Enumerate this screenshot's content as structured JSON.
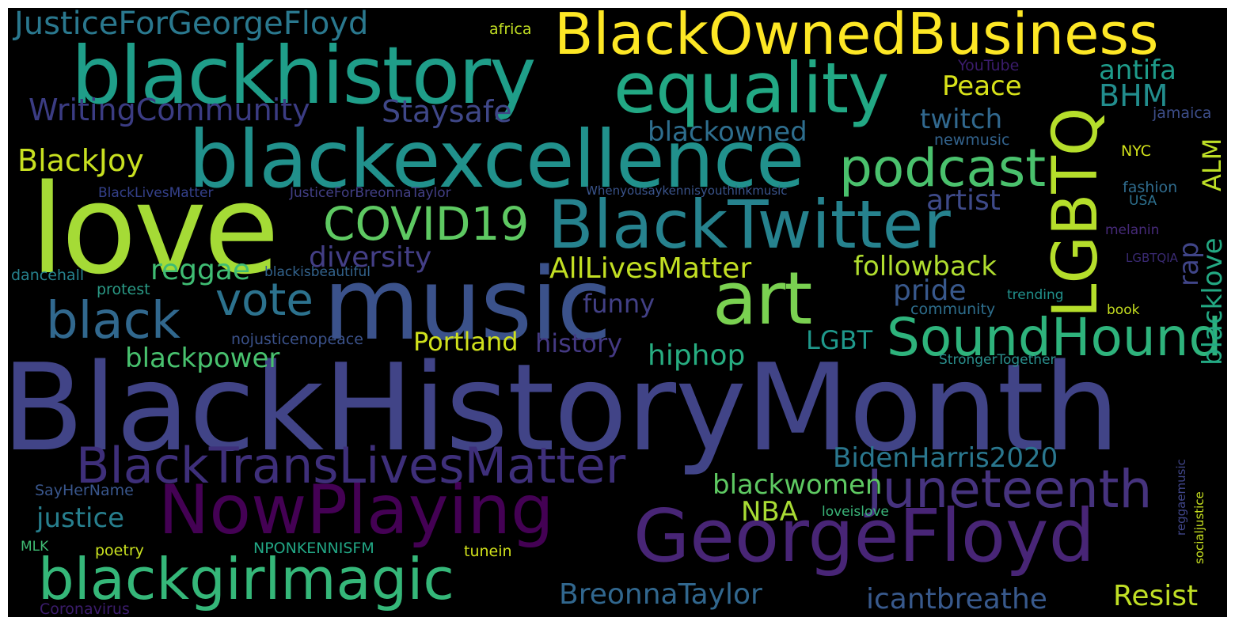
{
  "words": [
    {
      "text": "BlackHistoryMonth",
      "color": "#414487"
    },
    {
      "text": "love",
      "color": "#a5db36"
    },
    {
      "text": "music",
      "color": "#3b528b"
    },
    {
      "text": "blackexcellence",
      "color": "#21918c"
    },
    {
      "text": "blackhistory",
      "color": "#1f9e89"
    },
    {
      "text": "equality",
      "color": "#22a884"
    },
    {
      "text": "BlackOwnedBusiness",
      "color": "#fde725"
    },
    {
      "text": "BlackTwitter",
      "color": "#26828e"
    },
    {
      "text": "art",
      "color": "#7ad151"
    },
    {
      "text": "GeorgeFloyd",
      "color": "#482576"
    },
    {
      "text": "NowPlaying",
      "color": "#440154"
    },
    {
      "text": "LGBTQ",
      "color": "#b5de2b"
    },
    {
      "text": "blackgirlmagic",
      "color": "#35b779"
    },
    {
      "text": "BlackTransLivesMatter",
      "color": "#3e2f7a"
    },
    {
      "text": "podcast",
      "color": "#4ac16d"
    },
    {
      "text": "Juneteenth",
      "color": "#46337e"
    },
    {
      "text": "SoundHound",
      "color": "#2eb37c"
    },
    {
      "text": "black",
      "color": "#31688e"
    },
    {
      "text": "vote",
      "color": "#2c728e"
    },
    {
      "text": "COVID19",
      "color": "#5ec962"
    },
    {
      "text": "JusticeForGeorgeFloyd",
      "color": "#2a788e"
    },
    {
      "text": "WritingCommunity",
      "color": "#3b3c83"
    },
    {
      "text": "Staysafe",
      "color": "#3f4788"
    },
    {
      "text": "BlackJoy",
      "color": "#c8e020"
    },
    {
      "text": "blackowned",
      "color": "#2e6e8e"
    },
    {
      "text": "twitch",
      "color": "#31688e"
    },
    {
      "text": "BHM",
      "color": "#228d8d"
    },
    {
      "text": "Peace",
      "color": "#d8e219"
    },
    {
      "text": "antifa",
      "color": "#1e9b8a"
    },
    {
      "text": "ALM",
      "color": "#bddf26"
    },
    {
      "text": "artist",
      "color": "#3e4a89"
    },
    {
      "text": "diversity",
      "color": "#433e85"
    },
    {
      "text": "reggae",
      "color": "#3fbc73"
    },
    {
      "text": "AllLivesMatter",
      "color": "#c2df23"
    },
    {
      "text": "followback",
      "color": "#b0dd2f"
    },
    {
      "text": "rap",
      "color": "#404588"
    },
    {
      "text": "blacklove",
      "color": "#23a983"
    },
    {
      "text": "pride",
      "color": "#38588c"
    },
    {
      "text": "funny",
      "color": "#424086"
    },
    {
      "text": "history",
      "color": "#443983"
    },
    {
      "text": "Portland",
      "color": "#d0e11c"
    },
    {
      "text": "LGBT",
      "color": "#1f988b"
    },
    {
      "text": "hiphop",
      "color": "#27ad81"
    },
    {
      "text": "blackpower",
      "color": "#48c16e"
    },
    {
      "text": "BidenHarris2020",
      "color": "#2a778e"
    },
    {
      "text": "blackwomen",
      "color": "#5ec962"
    },
    {
      "text": "NBA",
      "color": "#a8db34"
    },
    {
      "text": "justice",
      "color": "#277f8e"
    },
    {
      "text": "BreonnaTaylor",
      "color": "#31678e"
    },
    {
      "text": "icantbreathe",
      "color": "#38598c"
    },
    {
      "text": "Resist",
      "color": "#c0df25"
    },
    {
      "text": "africa",
      "color": "#c2df23"
    },
    {
      "text": "YouTube",
      "color": "#3b1c6c"
    },
    {
      "text": "jamaica",
      "color": "#3d4e8a"
    },
    {
      "text": "newmusic",
      "color": "#33638d"
    },
    {
      "text": "NYC",
      "color": "#d2e21b"
    },
    {
      "text": "BlackLivesMatter",
      "color": "#34408a"
    },
    {
      "text": "JusticeForBreonnaTaylor",
      "color": "#423f85"
    },
    {
      "text": "Whenyousaykennisyouthinkmusic",
      "color": "#3a548c"
    },
    {
      "text": "fashion",
      "color": "#2f6c8e"
    },
    {
      "text": "USA",
      "color": "#2d708e"
    },
    {
      "text": "melanin",
      "color": "#462a79"
    },
    {
      "text": "LGBTQIA",
      "color": "#3a2a73"
    },
    {
      "text": "dancehall",
      "color": "#26828e"
    },
    {
      "text": "blackisbeautiful",
      "color": "#33638d"
    },
    {
      "text": "protest",
      "color": "#2a9a86"
    },
    {
      "text": "trending",
      "color": "#21918c"
    },
    {
      "text": "community",
      "color": "#2e6f8e"
    },
    {
      "text": "book",
      "color": "#c6df1f"
    },
    {
      "text": "nojusticenopeace",
      "color": "#3b528b"
    },
    {
      "text": "StrongerTogether",
      "color": "#2a8f8d"
    },
    {
      "text": "SayHerName",
      "color": "#39568c"
    },
    {
      "text": "loveislove",
      "color": "#3ab579"
    },
    {
      "text": "reggaemusic",
      "color": "#404588"
    },
    {
      "text": "socialjustice",
      "color": "#c7e020"
    },
    {
      "text": "MLK",
      "color": "#3fbc73"
    },
    {
      "text": "poetry",
      "color": "#c9e120"
    },
    {
      "text": "NPONKENNISFM",
      "color": "#22a785"
    },
    {
      "text": "tunein",
      "color": "#d2e21b"
    },
    {
      "text": "Coronavirus",
      "color": "#3b1c6c"
    }
  ]
}
